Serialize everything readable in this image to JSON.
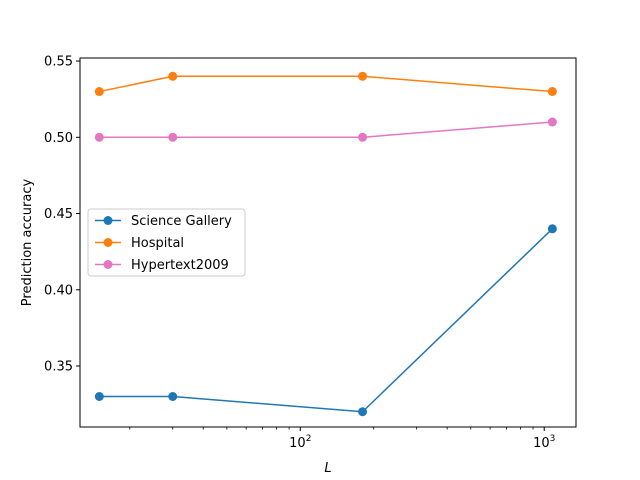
{
  "chart_data": {
    "type": "line",
    "title": "",
    "xlabel": "L",
    "ylabel": "Prediction accuracy",
    "xscale": "log",
    "xlim": [
      12.5,
      1350
    ],
    "ylim": [
      0.31,
      0.552
    ],
    "yticks": [
      0.35,
      0.4,
      0.45,
      0.5,
      0.55
    ],
    "ytick_labels": [
      "0.35",
      "0.40",
      "0.45",
      "0.50",
      "0.55"
    ],
    "xticks": [
      100,
      1000
    ],
    "xtick_labels": [
      {
        "base": "10",
        "exp": "2"
      },
      {
        "base": "10",
        "exp": "3"
      }
    ],
    "grid": false,
    "legend_position": "center-left",
    "x": [
      15,
      30,
      180,
      1080
    ],
    "series": [
      {
        "name": "Science Gallery",
        "color": "#1f77b4",
        "values": [
          0.33,
          0.33,
          0.32,
          0.44
        ]
      },
      {
        "name": "Hospital",
        "color": "#ff7f0e",
        "values": [
          0.53,
          0.54,
          0.54,
          0.53
        ]
      },
      {
        "name": "Hypertext2009",
        "color": "#e377c2",
        "values": [
          0.5,
          0.5,
          0.5,
          0.51
        ]
      }
    ]
  }
}
